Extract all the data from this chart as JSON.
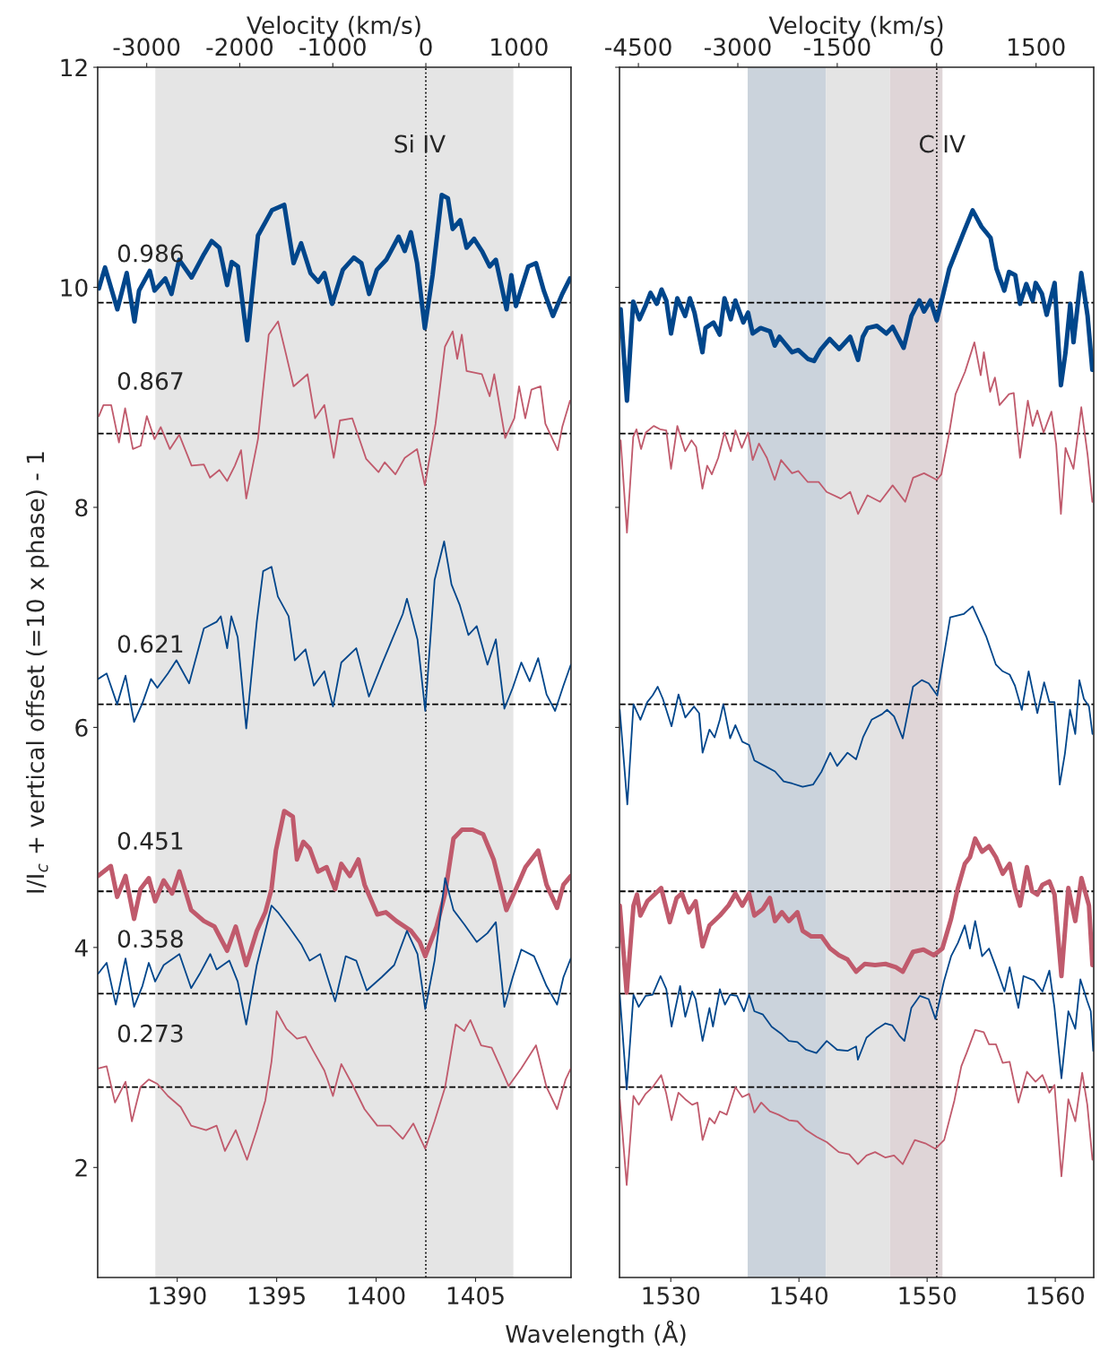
{
  "chart_data": [
    {
      "type": "line",
      "xlabel": "Wavelength (Å)",
      "ylabel": "I/I$_{c}$ + vertical offset (=10 x phase) - 1",
      "x2label": "Velocity (km/s)",
      "xlim": [
        1386,
        1409.8
      ],
      "xticks": [
        1390,
        1395,
        1400,
        1405
      ],
      "ylim": [
        1,
        12
      ],
      "yticks": [
        2,
        4,
        6,
        8,
        10,
        12
      ],
      "x2lim": [
        -3527,
        1560
      ],
      "x2ticks": [
        -3000,
        -2000,
        -1000,
        0,
        1000
      ],
      "annotations": [
        "Si IV"
      ],
      "grid": false,
      "legend": false,
      "bands": [
        {
          "axis": "x",
          "from": 1388.9,
          "to": 1406.9,
          "color": "#e5e5e5"
        }
      ],
      "ref_lines": [
        {
          "axis": "x",
          "value": 1402.5,
          "color": "#000000",
          "line_style": "dotted"
        },
        {
          "axis": "y",
          "value": 9.86,
          "color": "#000000",
          "line_style": "dashed"
        },
        {
          "axis": "y",
          "value": 8.67,
          "color": "#000000",
          "line_style": "dashed"
        },
        {
          "axis": "y",
          "value": 6.21,
          "color": "#000000",
          "line_style": "dashed"
        },
        {
          "axis": "y",
          "value": 4.51,
          "color": "#000000",
          "line_style": "dashed"
        },
        {
          "axis": "y",
          "value": 3.58,
          "color": "#000000",
          "line_style": "dashed"
        },
        {
          "axis": "y",
          "value": 2.73,
          "color": "#000000",
          "line_style": "dashed"
        }
      ],
      "series": [
        {
          "name": "0.986",
          "color": "#00468b",
          "x": [
            1386.06,
            1386.37,
            1386.99,
            1387.46,
            1387.85,
            1388.08,
            1388.62,
            1388.86,
            1389.4,
            1389.71,
            1390.1,
            1390.72,
            1391.34,
            1391.73,
            1392.12,
            1392.51,
            1392.74,
            1393.05,
            1393.52,
            1394.06,
            1394.76,
            1395.38,
            1395.85,
            1396.23,
            1396.7,
            1397.09,
            1397.4,
            1397.79,
            1398.33,
            1398.88,
            1399.26,
            1399.65,
            1400.04,
            1400.51,
            1401.13,
            1401.44,
            1401.75,
            1402.06,
            1402.45,
            1402.84,
            1403.3,
            1403.61,
            1403.85,
            1404.23,
            1404.55,
            1404.93,
            1405.32,
            1405.71,
            1406.02,
            1406.56,
            1406.8,
            1407.03,
            1407.65,
            1408.04,
            1408.43,
            1408.89,
            1409.36,
            1409.75
          ],
          "values": [
            9.99,
            10.18,
            9.8,
            10.13,
            9.69,
            9.97,
            10.15,
            9.97,
            10.08,
            9.94,
            10.25,
            10.09,
            10.3,
            10.42,
            10.36,
            10.02,
            10.23,
            10.19,
            9.52,
            10.47,
            10.7,
            10.75,
            10.22,
            10.4,
            10.13,
            10.05,
            10.13,
            9.85,
            10.16,
            10.27,
            10.22,
            9.94,
            10.16,
            10.25,
            10.46,
            10.33,
            10.5,
            10.22,
            9.63,
            10.11,
            10.84,
            10.81,
            10.53,
            10.61,
            10.36,
            10.44,
            10.33,
            10.19,
            10.25,
            9.8,
            10.11,
            9.83,
            10.19,
            10.22,
            9.97,
            9.74,
            9.94,
            10.08
          ]
        },
        {
          "name": "0.867",
          "color": "#c05a6c",
          "x": [
            1386.06,
            1386.29,
            1386.68,
            1387.07,
            1387.38,
            1387.77,
            1388.16,
            1388.47,
            1388.86,
            1389.17,
            1389.63,
            1390.1,
            1390.72,
            1391.34,
            1391.65,
            1392.12,
            1392.51,
            1392.9,
            1393.21,
            1393.47,
            1394.06,
            1394.6,
            1395.07,
            1395.46,
            1395.85,
            1396.55,
            1396.93,
            1397.4,
            1397.87,
            1398.18,
            1398.8,
            1399.5,
            1400.12,
            1400.43,
            1400.97,
            1401.44,
            1402.06,
            1402.45,
            1402.99,
            1403.46,
            1403.85,
            1404.08,
            1404.31,
            1404.55,
            1405.32,
            1405.71,
            1405.94,
            1406.49,
            1406.95,
            1407.19,
            1407.5,
            1407.81,
            1408.27,
            1408.51,
            1409.13,
            1409.36,
            1409.75
          ],
          "values": [
            8.83,
            8.93,
            8.93,
            8.59,
            8.9,
            8.53,
            8.56,
            8.83,
            8.62,
            8.73,
            8.53,
            8.66,
            8.38,
            8.39,
            8.27,
            8.34,
            8.24,
            8.38,
            8.52,
            8.08,
            8.62,
            9.57,
            9.69,
            9.4,
            9.1,
            9.21,
            8.81,
            8.93,
            8.45,
            8.79,
            8.81,
            8.44,
            8.32,
            8.41,
            8.3,
            8.45,
            8.53,
            8.2,
            8.76,
            9.46,
            9.6,
            9.35,
            9.57,
            9.24,
            9.21,
            9.01,
            9.21,
            8.63,
            8.81,
            9.1,
            8.81,
            9.07,
            9.1,
            8.76,
            8.52,
            8.73,
            8.97
          ]
        },
        {
          "name": "0.621",
          "color": "#00468b",
          "x": [
            1386.02,
            1386.45,
            1386.98,
            1387.4,
            1387.83,
            1388.25,
            1388.68,
            1389.0,
            1389.53,
            1389.96,
            1390.6,
            1391.34,
            1391.98,
            1392.19,
            1392.51,
            1392.72,
            1393.04,
            1393.47,
            1394.0,
            1394.32,
            1394.74,
            1395.06,
            1395.6,
            1395.91,
            1396.45,
            1396.87,
            1397.4,
            1397.83,
            1398.25,
            1399.0,
            1399.64,
            1400.28,
            1400.81,
            1401.34,
            1401.55,
            1402.08,
            1402.47,
            1402.94,
            1403.42,
            1403.79,
            1404.21,
            1404.64,
            1405.06,
            1405.6,
            1406.02,
            1406.45,
            1406.87,
            1407.3,
            1407.72,
            1408.15,
            1408.57,
            1409.0,
            1409.42,
            1409.79
          ],
          "values": [
            6.44,
            6.49,
            6.21,
            6.47,
            6.05,
            6.22,
            6.44,
            6.36,
            6.49,
            6.61,
            6.4,
            6.9,
            6.96,
            7.01,
            6.72,
            7.01,
            6.82,
            5.99,
            6.96,
            7.42,
            7.46,
            7.19,
            7.01,
            6.61,
            6.71,
            6.38,
            6.51,
            6.19,
            6.59,
            6.72,
            6.28,
            6.57,
            6.8,
            7.03,
            7.17,
            6.8,
            6.15,
            7.34,
            7.69,
            7.3,
            7.11,
            6.84,
            6.92,
            6.57,
            6.8,
            6.17,
            6.36,
            6.59,
            6.42,
            6.63,
            6.3,
            6.15,
            6.38,
            6.57
          ]
        },
        {
          "name": "0.451",
          "color": "#c05a6c",
          "x": [
            1386.02,
            1386.66,
            1386.98,
            1387.4,
            1387.83,
            1388.15,
            1388.57,
            1388.89,
            1389.32,
            1389.74,
            1390.11,
            1390.7,
            1391.34,
            1391.87,
            1392.51,
            1392.94,
            1393.47,
            1394.0,
            1394.43,
            1394.74,
            1394.96,
            1395.38,
            1395.81,
            1396.02,
            1396.34,
            1396.66,
            1397.08,
            1397.51,
            1397.94,
            1398.25,
            1398.68,
            1399.11,
            1399.42,
            1400.06,
            1400.49,
            1401.02,
            1401.76,
            1402.19,
            1402.47,
            1403.04,
            1403.47,
            1403.89,
            1404.32,
            1404.85,
            1405.38,
            1405.91,
            1406.55,
            1406.98,
            1407.51,
            1408.15,
            1408.57,
            1409.1,
            1409.42,
            1409.79
          ],
          "values": [
            4.65,
            4.74,
            4.46,
            4.65,
            4.26,
            4.53,
            4.63,
            4.42,
            4.61,
            4.49,
            4.69,
            4.34,
            4.24,
            4.19,
            3.97,
            4.19,
            3.84,
            4.15,
            4.32,
            4.53,
            4.88,
            5.24,
            5.19,
            4.8,
            4.96,
            4.9,
            4.69,
            4.73,
            4.53,
            4.76,
            4.65,
            4.8,
            4.57,
            4.3,
            4.32,
            4.24,
            4.15,
            4.05,
            3.92,
            4.19,
            4.49,
            4.99,
            5.07,
            5.07,
            5.03,
            4.8,
            4.34,
            4.51,
            4.73,
            4.88,
            4.57,
            4.36,
            4.57,
            4.65
          ]
        },
        {
          "name": "0.358",
          "color": "#00468b",
          "x": [
            1386.02,
            1386.45,
            1386.91,
            1387.4,
            1387.83,
            1388.25,
            1388.57,
            1388.89,
            1389.32,
            1390.11,
            1390.7,
            1391.13,
            1391.66,
            1391.98,
            1392.62,
            1393.04,
            1393.47,
            1394.0,
            1394.74,
            1395.06,
            1395.6,
            1396.23,
            1396.66,
            1397.19,
            1397.94,
            1398.47,
            1399.0,
            1399.53,
            1400.28,
            1400.91,
            1401.55,
            1402.08,
            1402.47,
            1402.94,
            1403.47,
            1403.89,
            1404.43,
            1405.06,
            1405.6,
            1406.02,
            1406.45,
            1406.87,
            1407.3,
            1407.94,
            1408.57,
            1409.1,
            1409.42,
            1409.79
          ],
          "values": [
            3.76,
            3.86,
            3.48,
            3.9,
            3.46,
            3.65,
            3.86,
            3.69,
            3.84,
            3.94,
            3.63,
            3.76,
            3.94,
            3.8,
            3.88,
            3.69,
            3.3,
            3.84,
            4.38,
            4.32,
            4.19,
            4.03,
            3.88,
            3.94,
            3.51,
            3.92,
            3.88,
            3.61,
            3.73,
            3.84,
            4.15,
            3.94,
            3.44,
            3.88,
            4.63,
            4.34,
            4.21,
            4.05,
            4.13,
            4.23,
            3.46,
            3.73,
            3.98,
            3.92,
            3.65,
            3.48,
            3.73,
            3.9
          ]
        },
        {
          "name": "0.273",
          "color": "#c05a6c",
          "x": [
            1386.02,
            1386.45,
            1386.87,
            1387.4,
            1387.72,
            1388.15,
            1388.57,
            1389.0,
            1389.53,
            1390.17,
            1390.7,
            1391.45,
            1391.98,
            1392.4,
            1392.94,
            1393.51,
            1394.0,
            1394.43,
            1394.74,
            1395.0,
            1395.49,
            1396.02,
            1396.45,
            1396.87,
            1397.4,
            1397.83,
            1398.25,
            1398.79,
            1399.42,
            1400.06,
            1400.7,
            1401.34,
            1401.87,
            1402.47,
            1402.94,
            1403.47,
            1404.0,
            1404.43,
            1404.74,
            1405.28,
            1405.81,
            1406.23,
            1406.66,
            1407.3,
            1408.04,
            1408.57,
            1409.1,
            1409.53,
            1409.79
          ],
          "values": [
            2.9,
            2.92,
            2.59,
            2.78,
            2.42,
            2.73,
            2.8,
            2.76,
            2.65,
            2.55,
            2.38,
            2.34,
            2.38,
            2.15,
            2.34,
            2.07,
            2.34,
            2.61,
            2.96,
            3.42,
            3.26,
            3.17,
            3.19,
            3.05,
            2.88,
            2.65,
            2.94,
            2.76,
            2.53,
            2.38,
            2.38,
            2.26,
            2.4,
            2.17,
            2.42,
            2.73,
            3.3,
            3.24,
            3.34,
            3.11,
            3.09,
            2.92,
            2.74,
            2.9,
            3.11,
            2.73,
            2.53,
            2.8,
            2.9
          ]
        }
      ]
    },
    {
      "type": "line",
      "x2label": "Velocity (km/s)",
      "tick_labels": "x",
      "xlim": [
        1526,
        1563
      ],
      "xticks": [
        1530,
        1540,
        1550,
        1560
      ],
      "ylim": [
        1,
        12
      ],
      "yticks": [
        2,
        4,
        6,
        8,
        10,
        12
      ],
      "x2lim": [
        -4785,
        2370
      ],
      "x2ticks": [
        -4500,
        -3000,
        -1500,
        0,
        1500
      ],
      "annotations": [
        "C IV"
      ],
      "grid": false,
      "legend": false,
      "bands": [
        {
          "axis": "x",
          "from": 1536.0,
          "to": 1542.1,
          "color": "#cbd3dc"
        },
        {
          "axis": "x",
          "from": 1542.1,
          "to": 1547.1,
          "color": "#e4e4e4"
        },
        {
          "axis": "x",
          "from": 1547.1,
          "to": 1551.2,
          "color": "#dfd5d7"
        }
      ],
      "ref_lines": [
        {
          "axis": "x",
          "value": 1550.75,
          "color": "#000000",
          "line_style": "dotted"
        },
        {
          "axis": "y",
          "value": 9.86,
          "color": "#000000",
          "line_style": "dashed"
        },
        {
          "axis": "y",
          "value": 8.67,
          "color": "#000000",
          "line_style": "dashed"
        },
        {
          "axis": "y",
          "value": 6.21,
          "color": "#000000",
          "line_style": "dashed"
        },
        {
          "axis": "y",
          "value": 4.51,
          "color": "#000000",
          "line_style": "dashed"
        },
        {
          "axis": "y",
          "value": 3.58,
          "color": "#000000",
          "line_style": "dashed"
        },
        {
          "axis": "y",
          "value": 2.73,
          "color": "#000000",
          "line_style": "dashed"
        }
      ],
      "series": [
        {
          "color": "#00468b",
          "x": [
            1526.09,
            1526.58,
            1527.07,
            1527.56,
            1528.05,
            1528.42,
            1528.91,
            1529.28,
            1529.65,
            1530.02,
            1530.51,
            1531.12,
            1531.49,
            1531.85,
            1532.47,
            1532.71,
            1533.33,
            1533.82,
            1534.19,
            1534.68,
            1535.04,
            1535.66,
            1536.03,
            1536.39,
            1537.01,
            1537.74,
            1538.11,
            1538.48,
            1539.46,
            1539.95,
            1540.69,
            1541.18,
            1541.67,
            1542.4,
            1543.14,
            1544.0,
            1544.61,
            1544.98,
            1545.35,
            1546.08,
            1546.82,
            1547.31,
            1548.17,
            1548.78,
            1549.4,
            1549.76,
            1550.26,
            1550.75,
            1551.24,
            1551.73,
            1552.85,
            1553.55,
            1554.25,
            1554.95,
            1555.41,
            1556.02,
            1556.39,
            1556.88,
            1557.25,
            1557.74,
            1558.23,
            1558.47,
            1558.96,
            1559.33,
            1559.95,
            1560.44,
            1560.8,
            1561.17,
            1561.42,
            1562.03,
            1562.52,
            1562.89
          ],
          "values": [
            9.8,
            8.97,
            9.87,
            9.71,
            9.84,
            9.95,
            9.85,
            9.98,
            9.88,
            9.58,
            9.9,
            9.74,
            9.9,
            9.77,
            9.41,
            9.63,
            9.68,
            9.57,
            9.9,
            9.71,
            9.88,
            9.68,
            9.77,
            9.58,
            9.63,
            9.6,
            9.47,
            9.55,
            9.41,
            9.43,
            9.35,
            9.33,
            9.43,
            9.53,
            9.44,
            9.55,
            9.34,
            9.55,
            9.63,
            9.65,
            9.58,
            9.64,
            9.45,
            9.74,
            9.88,
            9.78,
            9.88,
            9.7,
            9.93,
            10.17,
            10.5,
            10.7,
            10.55,
            10.45,
            10.17,
            9.97,
            10.14,
            10.11,
            9.85,
            10.03,
            9.88,
            10.04,
            9.94,
            9.75,
            10.04,
            9.11,
            9.41,
            9.85,
            9.5,
            10.13,
            9.74,
            9.25
          ]
        },
        {
          "color": "#c05a6c",
          "x": [
            1526.09,
            1526.58,
            1527.07,
            1527.32,
            1527.68,
            1528.05,
            1528.67,
            1529.16,
            1529.65,
            1530.02,
            1530.51,
            1531.12,
            1531.61,
            1531.98,
            1532.47,
            1532.84,
            1533.2,
            1533.7,
            1534.19,
            1534.68,
            1535.04,
            1535.54,
            1536.03,
            1536.39,
            1536.88,
            1537.5,
            1538.11,
            1538.6,
            1539.46,
            1539.95,
            1540.69,
            1541.55,
            1542.16,
            1543.26,
            1544.0,
            1544.61,
            1545.35,
            1546.33,
            1547.31,
            1548.29,
            1548.91,
            1549.76,
            1550.75,
            1551.11,
            1551.73,
            1552.22,
            1552.95,
            1553.69,
            1554.18,
            1554.43,
            1554.92,
            1555.29,
            1555.65,
            1556.39,
            1556.76,
            1557.25,
            1557.86,
            1558.23,
            1558.6,
            1559.09,
            1559.7,
            1560.07,
            1560.44,
            1560.8,
            1561.42,
            1562.03,
            1562.52,
            1562.89
          ],
          "values": [
            8.61,
            7.77,
            8.64,
            8.71,
            8.53,
            8.68,
            8.74,
            8.71,
            8.7,
            8.35,
            8.74,
            8.51,
            8.61,
            8.55,
            8.17,
            8.38,
            8.3,
            8.45,
            8.68,
            8.51,
            8.7,
            8.54,
            8.68,
            8.43,
            8.58,
            8.45,
            8.25,
            8.43,
            8.31,
            8.33,
            8.23,
            8.23,
            8.14,
            8.08,
            8.14,
            7.94,
            8.11,
            8.05,
            8.2,
            8.05,
            8.27,
            8.31,
            8.25,
            8.3,
            8.68,
            9.03,
            9.23,
            9.5,
            9.2,
            9.41,
            9.05,
            9.18,
            8.93,
            9.03,
            9.04,
            8.45,
            8.97,
            8.74,
            8.88,
            8.68,
            8.87,
            8.57,
            7.94,
            8.54,
            8.35,
            8.91,
            8.48,
            8.05
          ]
        },
        {
          "color": "#00468b",
          "x": [
            1526.02,
            1526.61,
            1527.09,
            1527.63,
            1528.17,
            1528.58,
            1528.98,
            1529.38,
            1530.06,
            1530.6,
            1531.13,
            1531.81,
            1532.21,
            1532.48,
            1533.02,
            1533.42,
            1533.83,
            1534.1,
            1534.63,
            1535.04,
            1535.58,
            1536.11,
            1536.52,
            1537.33,
            1538.13,
            1538.81,
            1539.48,
            1540.29,
            1541.1,
            1541.77,
            1542.44,
            1542.98,
            1543.79,
            1544.46,
            1545.0,
            1545.67,
            1546.48,
            1546.88,
            1547.42,
            1548.1,
            1548.9,
            1549.58,
            1550.12,
            1550.79,
            1551.19,
            1551.8,
            1552.85,
            1553.55,
            1554.6,
            1555.37,
            1555.9,
            1556.44,
            1556.85,
            1557.39,
            1557.92,
            1558.6,
            1559.13,
            1559.54,
            1559.94,
            1560.35,
            1560.75,
            1561.15,
            1561.56,
            1561.88,
            1562.23,
            1562.63,
            1562.9
          ],
          "values": [
            6.16,
            5.3,
            6.21,
            6.07,
            6.23,
            6.29,
            6.37,
            6.26,
            6.01,
            6.3,
            6.09,
            6.19,
            6.13,
            5.77,
            5.98,
            5.91,
            6.07,
            6.21,
            5.9,
            6.02,
            5.87,
            5.84,
            5.7,
            5.65,
            5.6,
            5.51,
            5.49,
            5.46,
            5.48,
            5.6,
            5.77,
            5.65,
            5.77,
            5.71,
            5.91,
            6.07,
            6.12,
            6.16,
            6.1,
            5.9,
            6.37,
            6.43,
            6.4,
            6.29,
            6.57,
            7.0,
            7.03,
            7.1,
            6.83,
            6.57,
            6.51,
            6.48,
            6.38,
            6.16,
            6.51,
            6.13,
            6.41,
            6.23,
            6.23,
            5.48,
            5.76,
            6.16,
            5.94,
            6.43,
            6.26,
            6.19,
            5.94
          ]
        },
        {
          "color": "#c05a6c",
          "x": [
            1526.02,
            1526.56,
            1527.09,
            1527.36,
            1527.63,
            1528.17,
            1528.71,
            1529.25,
            1529.92,
            1530.46,
            1530.86,
            1531.4,
            1531.94,
            1532.48,
            1533.02,
            1533.83,
            1534.5,
            1535.04,
            1535.58,
            1536.11,
            1536.52,
            1537.19,
            1537.73,
            1538.13,
            1538.67,
            1539.21,
            1539.88,
            1540.29,
            1540.96,
            1541.77,
            1542.44,
            1543.12,
            1543.79,
            1544.46,
            1545.13,
            1545.94,
            1546.75,
            1547.56,
            1548.1,
            1548.9,
            1549.71,
            1550.52,
            1551.19,
            1551.87,
            1552.4,
            1552.94,
            1553.34,
            1553.75,
            1554.29,
            1554.83,
            1555.37,
            1555.9,
            1556.44,
            1556.85,
            1557.25,
            1557.79,
            1558.19,
            1558.6,
            1559.0,
            1559.54,
            1559.94,
            1560.48,
            1561.02,
            1561.56,
            1562.04,
            1562.63,
            1562.9
          ],
          "values": [
            4.38,
            3.59,
            4.38,
            4.48,
            4.29,
            4.42,
            4.48,
            4.54,
            4.23,
            4.45,
            4.49,
            4.32,
            4.42,
            4.01,
            4.2,
            4.29,
            4.38,
            4.49,
            4.38,
            4.49,
            4.29,
            4.35,
            4.45,
            4.24,
            4.32,
            4.24,
            4.32,
            4.15,
            4.1,
            4.1,
            3.99,
            3.93,
            3.89,
            3.78,
            3.85,
            3.84,
            3.85,
            3.82,
            3.78,
            3.96,
            3.98,
            3.93,
            3.99,
            4.26,
            4.54,
            4.76,
            4.82,
            4.99,
            4.87,
            4.92,
            4.82,
            4.67,
            4.76,
            4.54,
            4.38,
            4.73,
            4.51,
            4.48,
            4.57,
            4.6,
            4.48,
            3.74,
            4.54,
            4.24,
            4.63,
            4.38,
            3.84
          ]
        },
        {
          "color": "#00468b",
          "x": [
            1526.02,
            1526.56,
            1527.09,
            1527.5,
            1528.04,
            1528.58,
            1529.2,
            1529.65,
            1530.06,
            1530.73,
            1531.13,
            1531.67,
            1531.94,
            1532.48,
            1533.02,
            1533.29,
            1533.83,
            1534.23,
            1534.63,
            1535.17,
            1535.71,
            1536.11,
            1536.52,
            1537.19,
            1537.87,
            1538.67,
            1539.21,
            1539.88,
            1540.56,
            1541.36,
            1542.17,
            1542.98,
            1543.79,
            1544.46,
            1544.6,
            1545.27,
            1546.08,
            1546.75,
            1547.29,
            1547.83,
            1548.23,
            1548.77,
            1549.44,
            1550.12,
            1550.65,
            1551.33,
            1551.87,
            1552.4,
            1552.94,
            1553.34,
            1553.75,
            1554.29,
            1554.83,
            1555.37,
            1556.04,
            1556.44,
            1557.12,
            1557.52,
            1558.33,
            1559.0,
            1559.54,
            1559.94,
            1560.48,
            1561.02,
            1561.56,
            1561.96,
            1562.5,
            1562.77,
            1562.96
          ],
          "values": [
            3.57,
            2.71,
            3.57,
            3.46,
            3.56,
            3.57,
            3.74,
            3.62,
            3.28,
            3.65,
            3.37,
            3.6,
            3.53,
            3.15,
            3.45,
            3.28,
            3.62,
            3.48,
            3.57,
            3.56,
            3.42,
            3.57,
            3.42,
            3.39,
            3.28,
            3.21,
            3.15,
            3.14,
            3.07,
            3.04,
            3.15,
            3.07,
            3.06,
            3.1,
            2.98,
            3.18,
            3.26,
            3.31,
            3.29,
            3.2,
            3.15,
            3.45,
            3.56,
            3.53,
            3.35,
            3.7,
            3.92,
            4.04,
            4.2,
            3.99,
            4.24,
            3.92,
            3.99,
            3.82,
            3.6,
            3.82,
            3.45,
            3.74,
            3.7,
            3.6,
            3.79,
            3.45,
            2.81,
            3.42,
            3.26,
            3.71,
            3.51,
            3.42,
            3.06
          ]
        },
        {
          "color": "#c05a6c",
          "x": [
            1526.02,
            1526.56,
            1527.09,
            1527.5,
            1528.04,
            1528.58,
            1529.25,
            1529.65,
            1530.06,
            1530.6,
            1531.13,
            1531.67,
            1532.08,
            1532.48,
            1533.02,
            1533.42,
            1533.83,
            1534.36,
            1535.04,
            1535.58,
            1536.11,
            1536.52,
            1537.06,
            1537.73,
            1538.4,
            1539.21,
            1539.88,
            1540.56,
            1541.36,
            1542.17,
            1543.11,
            1543.92,
            1544.6,
            1545.27,
            1545.94,
            1546.75,
            1547.42,
            1548.1,
            1549.04,
            1549.85,
            1550.65,
            1551.33,
            1552.13,
            1552.67,
            1553.08,
            1553.75,
            1554.42,
            1554.83,
            1555.37,
            1555.9,
            1556.44,
            1557.12,
            1557.79,
            1558.46,
            1559.0,
            1559.54,
            1559.94,
            1560.48,
            1561.02,
            1561.56,
            1562.1,
            1562.5,
            1562.9
          ],
          "values": [
            2.62,
            1.84,
            2.65,
            2.57,
            2.67,
            2.73,
            2.84,
            2.67,
            2.43,
            2.68,
            2.62,
            2.57,
            2.59,
            2.25,
            2.45,
            2.4,
            2.51,
            2.48,
            2.73,
            2.64,
            2.67,
            2.5,
            2.59,
            2.51,
            2.48,
            2.43,
            2.42,
            2.34,
            2.28,
            2.23,
            2.14,
            2.12,
            2.03,
            2.11,
            2.14,
            2.09,
            2.11,
            2.03,
            2.25,
            2.22,
            2.17,
            2.25,
            2.61,
            2.92,
            3.04,
            3.25,
            3.23,
            3.12,
            3.12,
            2.95,
            2.96,
            2.59,
            2.87,
            2.78,
            2.84,
            2.68,
            2.75,
            1.92,
            2.62,
            2.42,
            2.86,
            2.57,
            2.07
          ]
        }
      ]
    }
  ]
}
